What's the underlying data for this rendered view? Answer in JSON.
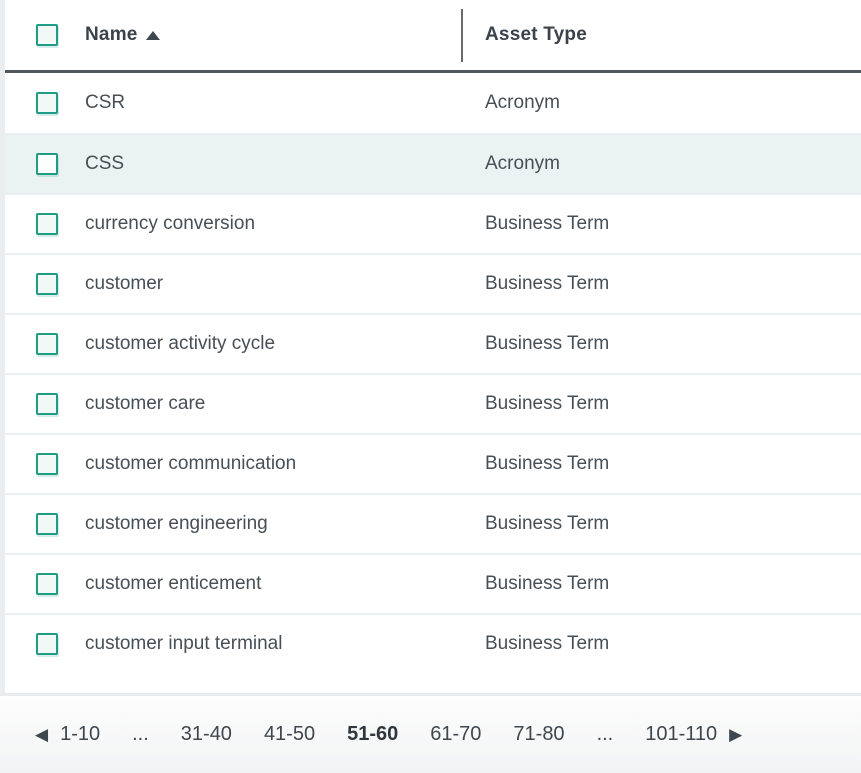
{
  "table": {
    "columns": {
      "name": {
        "label": "Name",
        "sort": "ascending"
      },
      "asset_type": {
        "label": "Asset Type"
      }
    },
    "rows": [
      {
        "name": "CSR",
        "type": "Acronym",
        "selected": false
      },
      {
        "name": "CSS",
        "type": "Acronym",
        "selected": true
      },
      {
        "name": "currency conversion",
        "type": "Business Term",
        "selected": false
      },
      {
        "name": "customer",
        "type": "Business Term",
        "selected": false
      },
      {
        "name": "customer activity cycle",
        "type": "Business Term",
        "selected": false
      },
      {
        "name": "customer care",
        "type": "Business Term",
        "selected": false
      },
      {
        "name": "customer communication",
        "type": "Business Term",
        "selected": false
      },
      {
        "name": "customer engineering",
        "type": "Business Term",
        "selected": false
      },
      {
        "name": "customer enticement",
        "type": "Business Term",
        "selected": false
      },
      {
        "name": "customer input terminal",
        "type": "Business Term",
        "selected": false
      }
    ]
  },
  "pagination": {
    "prev_icon": "◀",
    "next_icon": "▶",
    "pages": [
      {
        "label": "1-10",
        "current": false
      },
      {
        "label": "...",
        "current": false
      },
      {
        "label": "31-40",
        "current": false
      },
      {
        "label": "41-50",
        "current": false
      },
      {
        "label": "51-60",
        "current": true
      },
      {
        "label": "61-70",
        "current": false
      },
      {
        "label": "71-80",
        "current": false
      },
      {
        "label": "...",
        "current": false
      },
      {
        "label": "101-110",
        "current": false
      }
    ]
  },
  "colors": {
    "accent_teal": "#1e9c85",
    "selected_row_bg": "#eaf3f1",
    "header_border": "#51585e",
    "row_separator": "#eceff2",
    "text": "#474f56"
  }
}
